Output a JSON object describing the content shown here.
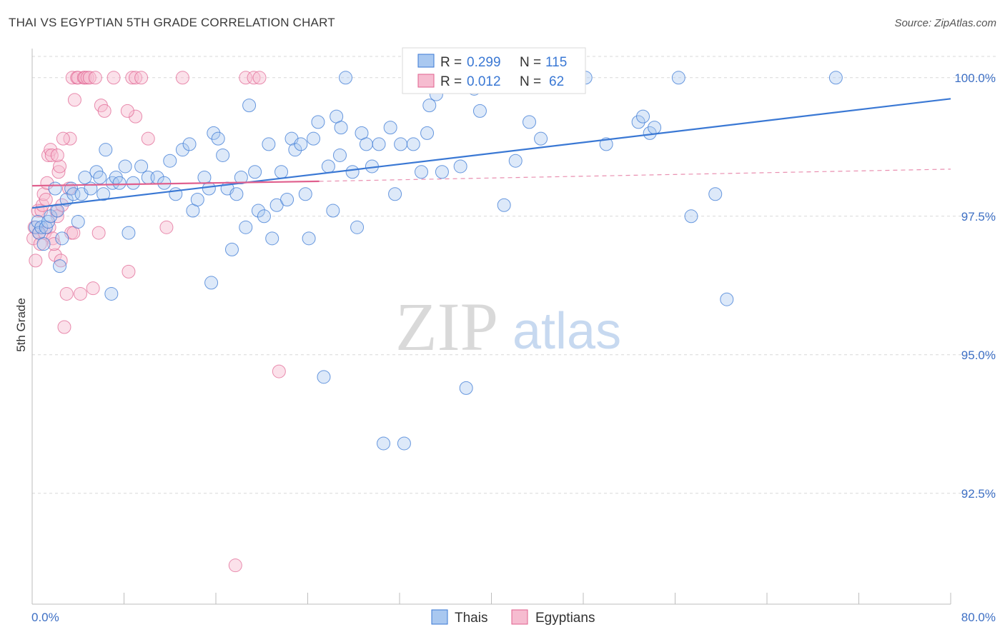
{
  "title": "THAI VS EGYPTIAN 5TH GRADE CORRELATION CHART",
  "source": "Source: ZipAtlas.com",
  "watermark": {
    "zip": "ZIP",
    "atlas": "atlas"
  },
  "colors": {
    "blue": "#3a78d4",
    "blue_fill": "#a9c8f0",
    "pink": "#e0608e",
    "pink_fill": "#f6bcd0",
    "grid": "#d9d9d9",
    "tick_label": "#3d6fc4"
  },
  "legend": {
    "rows": [
      {
        "r_label": "R =",
        "r_value": "0.299",
        "n_label": "N =",
        "n_value": "115",
        "series": "Thais"
      },
      {
        "r_label": "R =",
        "r_value": "0.012",
        "n_label": "N =",
        "n_value": "62",
        "series": "Egyptians"
      }
    ],
    "bottom": [
      "Thais",
      "Egyptians"
    ]
  },
  "chart_data": {
    "type": "scatter",
    "title": "THAI VS EGYPTIAN 5TH GRADE CORRELATION CHART",
    "xlabel": "",
    "ylabel": "5th Grade",
    "xlim": [
      0,
      80
    ],
    "ylim": [
      90.5,
      100.5
    ],
    "x_tick_labels": [
      "0.0%",
      "80.0%"
    ],
    "y_ticks": [
      92.5,
      95.0,
      97.5,
      100.0
    ],
    "y_tick_labels": [
      "92.5%",
      "95.0%",
      "97.5%",
      "100.0%"
    ],
    "grid": true,
    "legend_placement": "top-center",
    "series": [
      {
        "name": "Thais",
        "trend": {
          "x": [
            0,
            80
          ],
          "y": [
            97.65,
            99.62
          ]
        },
        "points": [
          [
            0.3,
            97.3
          ],
          [
            0.5,
            97.4
          ],
          [
            0.6,
            97.2
          ],
          [
            0.8,
            97.3
          ],
          [
            1.0,
            97.0
          ],
          [
            1.2,
            97.3
          ],
          [
            1.4,
            97.4
          ],
          [
            1.6,
            97.5
          ],
          [
            2.0,
            98.0
          ],
          [
            2.2,
            97.6
          ],
          [
            2.4,
            96.6
          ],
          [
            2.6,
            97.1
          ],
          [
            3.0,
            97.8
          ],
          [
            3.4,
            98.0
          ],
          [
            3.6,
            97.9
          ],
          [
            4.0,
            97.4
          ],
          [
            4.3,
            97.9
          ],
          [
            4.6,
            98.2
          ],
          [
            5.1,
            98.0
          ],
          [
            5.6,
            98.3
          ],
          [
            5.9,
            98.2
          ],
          [
            6.2,
            97.9
          ],
          [
            6.4,
            98.7
          ],
          [
            6.9,
            96.1
          ],
          [
            7.0,
            98.1
          ],
          [
            7.3,
            98.2
          ],
          [
            7.6,
            98.1
          ],
          [
            8.1,
            98.4
          ],
          [
            8.4,
            97.2
          ],
          [
            8.8,
            98.1
          ],
          [
            9.5,
            98.4
          ],
          [
            10.1,
            98.2
          ],
          [
            10.9,
            98.2
          ],
          [
            11.5,
            98.1
          ],
          [
            12.0,
            98.5
          ],
          [
            12.5,
            97.9
          ],
          [
            13.1,
            98.7
          ],
          [
            13.7,
            98.8
          ],
          [
            14.0,
            97.6
          ],
          [
            14.4,
            97.8
          ],
          [
            15.0,
            98.2
          ],
          [
            15.4,
            98.0
          ],
          [
            15.6,
            96.3
          ],
          [
            15.8,
            99.0
          ],
          [
            16.2,
            98.9
          ],
          [
            16.6,
            98.6
          ],
          [
            17.0,
            98.0
          ],
          [
            17.4,
            96.9
          ],
          [
            17.8,
            97.9
          ],
          [
            18.2,
            98.2
          ],
          [
            18.6,
            97.3
          ],
          [
            18.9,
            99.5
          ],
          [
            19.4,
            98.3
          ],
          [
            19.7,
            97.6
          ],
          [
            20.2,
            97.5
          ],
          [
            20.6,
            98.8
          ],
          [
            20.9,
            97.1
          ],
          [
            21.3,
            97.7
          ],
          [
            21.7,
            98.3
          ],
          [
            22.2,
            97.8
          ],
          [
            22.6,
            98.9
          ],
          [
            22.9,
            98.7
          ],
          [
            23.4,
            98.8
          ],
          [
            23.8,
            97.9
          ],
          [
            24.1,
            97.1
          ],
          [
            24.5,
            98.9
          ],
          [
            24.9,
            99.2
          ],
          [
            25.4,
            94.6
          ],
          [
            25.8,
            98.4
          ],
          [
            26.2,
            97.6
          ],
          [
            26.5,
            99.3
          ],
          [
            26.8,
            98.6
          ],
          [
            27.3,
            100.0
          ],
          [
            27.9,
            98.3
          ],
          [
            28.3,
            97.3
          ],
          [
            28.7,
            99.0
          ],
          [
            29.1,
            98.8
          ],
          [
            29.6,
            98.4
          ],
          [
            30.2,
            98.8
          ],
          [
            30.6,
            93.4
          ],
          [
            31.2,
            99.1
          ],
          [
            31.6,
            97.9
          ],
          [
            32.1,
            98.8
          ],
          [
            32.4,
            93.4
          ],
          [
            33.2,
            98.8
          ],
          [
            33.9,
            98.3
          ],
          [
            34.4,
            99.0
          ],
          [
            35.7,
            98.3
          ],
          [
            37.3,
            98.4
          ],
          [
            37.8,
            94.4
          ],
          [
            38.5,
            99.8
          ],
          [
            39.0,
            99.4
          ],
          [
            40.0,
            100.0
          ],
          [
            41.1,
            97.7
          ],
          [
            42.1,
            98.5
          ],
          [
            43.3,
            99.2
          ],
          [
            43.9,
            100.0
          ],
          [
            44.3,
            98.9
          ],
          [
            46.2,
            100.0
          ],
          [
            48.2,
            100.0
          ],
          [
            50.0,
            98.8
          ],
          [
            52.8,
            99.2
          ],
          [
            53.8,
            99.0
          ],
          [
            54.2,
            99.1
          ],
          [
            56.3,
            100.0
          ],
          [
            57.4,
            97.5
          ],
          [
            59.5,
            97.9
          ],
          [
            60.5,
            96.0
          ],
          [
            70.0,
            100.0
          ],
          [
            33.4,
            100.0
          ],
          [
            35.2,
            99.7
          ],
          [
            36.8,
            100.0
          ],
          [
            37.9,
            99.9
          ],
          [
            38.8,
            100.0
          ],
          [
            41.5,
            100.0
          ],
          [
            34.6,
            99.5
          ],
          [
            26.9,
            99.1
          ],
          [
            53.2,
            99.3
          ]
        ]
      },
      {
        "name": "Egyptians",
        "trend": {
          "x": [
            0,
            25
          ],
          "y": [
            98.05,
            98.13
          ],
          "dashed_extension": {
            "x": [
              25,
              80
            ],
            "y": [
              98.13,
              98.35
            ]
          }
        },
        "points": [
          [
            0.1,
            97.1
          ],
          [
            0.2,
            97.3
          ],
          [
            0.3,
            96.7
          ],
          [
            0.5,
            97.6
          ],
          [
            0.6,
            97.2
          ],
          [
            0.7,
            97.0
          ],
          [
            0.8,
            97.6
          ],
          [
            0.9,
            97.7
          ],
          [
            1.0,
            97.9
          ],
          [
            1.1,
            97.2
          ],
          [
            1.3,
            98.1
          ],
          [
            1.4,
            98.6
          ],
          [
            1.5,
            97.3
          ],
          [
            1.6,
            98.7
          ],
          [
            1.7,
            98.6
          ],
          [
            1.8,
            97.1
          ],
          [
            2.0,
            96.8
          ],
          [
            2.1,
            97.6
          ],
          [
            2.2,
            97.5
          ],
          [
            2.3,
            98.3
          ],
          [
            2.4,
            98.4
          ],
          [
            2.5,
            96.7
          ],
          [
            2.6,
            97.7
          ],
          [
            2.8,
            95.5
          ],
          [
            3.0,
            96.1
          ],
          [
            3.2,
            98.0
          ],
          [
            3.3,
            98.9
          ],
          [
            3.4,
            97.2
          ],
          [
            3.5,
            100.0
          ],
          [
            3.7,
            99.6
          ],
          [
            3.9,
            100.0
          ],
          [
            4.0,
            100.0
          ],
          [
            4.2,
            96.1
          ],
          [
            4.5,
            100.0
          ],
          [
            4.6,
            100.0
          ],
          [
            4.8,
            100.0
          ],
          [
            5.0,
            100.0
          ],
          [
            5.3,
            96.2
          ],
          [
            5.5,
            100.0
          ],
          [
            5.8,
            97.2
          ],
          [
            6.0,
            99.5
          ],
          [
            6.3,
            99.4
          ],
          [
            8.4,
            96.5
          ],
          [
            8.7,
            100.0
          ],
          [
            9.0,
            100.0
          ],
          [
            9.5,
            100.0
          ],
          [
            10.1,
            98.9
          ],
          [
            11.7,
            97.3
          ],
          [
            13.1,
            100.0
          ],
          [
            18.6,
            100.0
          ],
          [
            19.3,
            100.0
          ],
          [
            19.8,
            100.0
          ],
          [
            21.5,
            94.7
          ],
          [
            17.7,
            91.2
          ],
          [
            9.0,
            99.3
          ],
          [
            8.3,
            99.4
          ],
          [
            7.1,
            100.0
          ],
          [
            1.9,
            97.0
          ],
          [
            2.7,
            98.9
          ],
          [
            2.2,
            98.6
          ],
          [
            1.2,
            97.8
          ],
          [
            3.6,
            97.2
          ]
        ]
      }
    ]
  }
}
